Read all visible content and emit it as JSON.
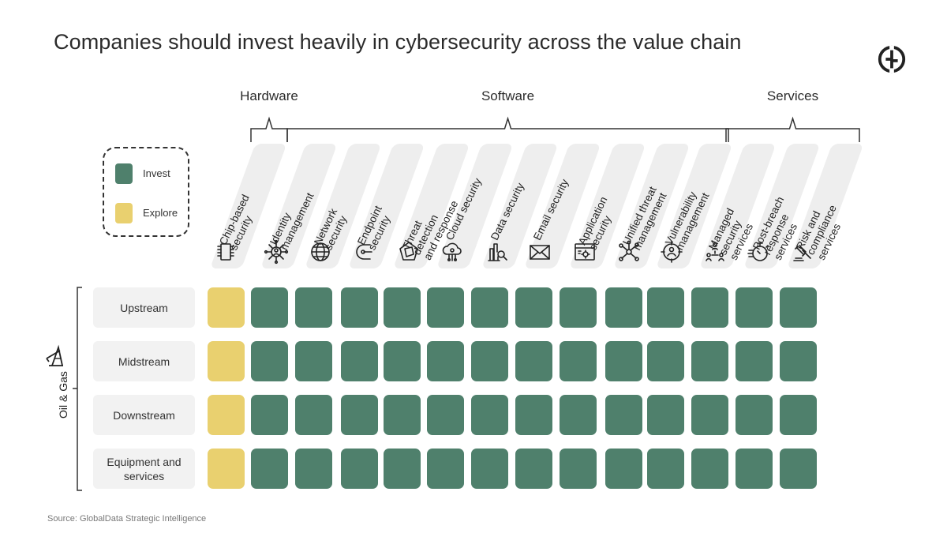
{
  "title": "Companies should invest heavily in cybersecurity across the value chain",
  "source": "Source: GlobalData Strategic Intelligence",
  "logo_icon": "globaldata-logo-icon",
  "colors": {
    "invest": "#4f806c",
    "explore": "#e9d06f",
    "label_bg": "#eeeeee",
    "text": "#2b2b2b"
  },
  "legend": [
    {
      "label": "Invest",
      "status": "invest"
    },
    {
      "label": "Explore",
      "status": "explore"
    }
  ],
  "industry": {
    "label": "Oil & Gas",
    "icon": "oil-derrick-icon"
  },
  "chart_data": {
    "type": "heatmap",
    "title": "Companies should invest heavily in cybersecurity across the value chain",
    "groups": [
      {
        "name": "Hardware",
        "columns": [
          "Chip-based security"
        ]
      },
      {
        "name": "Software",
        "columns": [
          "Identity management",
          "Network security",
          "Endpoint security",
          "Threat detection and response",
          "Cloud security",
          "Data security",
          "Email security",
          "Application security",
          "Unified threat management",
          "Vulnerability management"
        ]
      },
      {
        "name": "Services",
        "columns": [
          "Managed security services",
          "Post-breach response services",
          "Risk and compliance services"
        ]
      }
    ],
    "columns": [
      {
        "label": "Chip-based security",
        "lines": [
          "Chip-based",
          "security"
        ],
        "icon": "chip-icon"
      },
      {
        "label": "Identity management",
        "lines": [
          "Identity",
          "management"
        ],
        "icon": "identity-network-icon"
      },
      {
        "label": "Network security",
        "lines": [
          "Network",
          "security"
        ],
        "icon": "globe-network-icon"
      },
      {
        "label": "Endpoint security",
        "lines": [
          "Endpoint",
          "security"
        ],
        "icon": "endpoint-icon"
      },
      {
        "label": "Threat detection and response",
        "lines": [
          "Threat",
          "detection",
          "and response"
        ],
        "icon": "threat-shield-icon"
      },
      {
        "label": "Cloud security",
        "lines": [
          "Cloud security"
        ],
        "icon": "cloud-circuit-icon"
      },
      {
        "label": "Data security",
        "lines": [
          "Data security"
        ],
        "icon": "data-magnifier-icon"
      },
      {
        "label": "Email security",
        "lines": [
          "Email security"
        ],
        "icon": "envelope-icon"
      },
      {
        "label": "Application security",
        "lines": [
          "Application",
          "security"
        ],
        "icon": "app-window-gear-icon"
      },
      {
        "label": "Unified threat management",
        "lines": [
          "Unified threat",
          "management"
        ],
        "icon": "hub-nodes-icon"
      },
      {
        "label": "Vulnerability management",
        "lines": [
          "Vulnerability",
          "management"
        ],
        "icon": "target-person-icon"
      },
      {
        "label": "Managed security services",
        "lines": [
          "Managed",
          "security",
          "services"
        ],
        "icon": "people-network-icon"
      },
      {
        "label": "Post-breach response services",
        "lines": [
          "Post-breach",
          "response",
          "services"
        ],
        "icon": "stopwatch-icon"
      },
      {
        "label": "Risk and compliance services",
        "lines": [
          "Risk and",
          "compliance",
          "services"
        ],
        "icon": "gavel-icon"
      }
    ],
    "rows": [
      {
        "label": "Upstream",
        "values": [
          "explore",
          "invest",
          "invest",
          "invest",
          "invest",
          "invest",
          "invest",
          "invest",
          "invest",
          "invest",
          "invest",
          "invest",
          "invest",
          "invest"
        ]
      },
      {
        "label": "Midstream",
        "values": [
          "explore",
          "invest",
          "invest",
          "invest",
          "invest",
          "invest",
          "invest",
          "invest",
          "invest",
          "invest",
          "invest",
          "invest",
          "invest",
          "invest"
        ]
      },
      {
        "label": "Downstream",
        "values": [
          "explore",
          "invest",
          "invest",
          "invest",
          "invest",
          "invest",
          "invest",
          "invest",
          "invest",
          "invest",
          "invest",
          "invest",
          "invest",
          "invest"
        ]
      },
      {
        "label": "Equipment and services",
        "values": [
          "explore",
          "invest",
          "invest",
          "invest",
          "invest",
          "invest",
          "invest",
          "invest",
          "invest",
          "invest",
          "invest",
          "invest",
          "invest",
          "invest"
        ]
      }
    ],
    "legend_position": "left"
  }
}
